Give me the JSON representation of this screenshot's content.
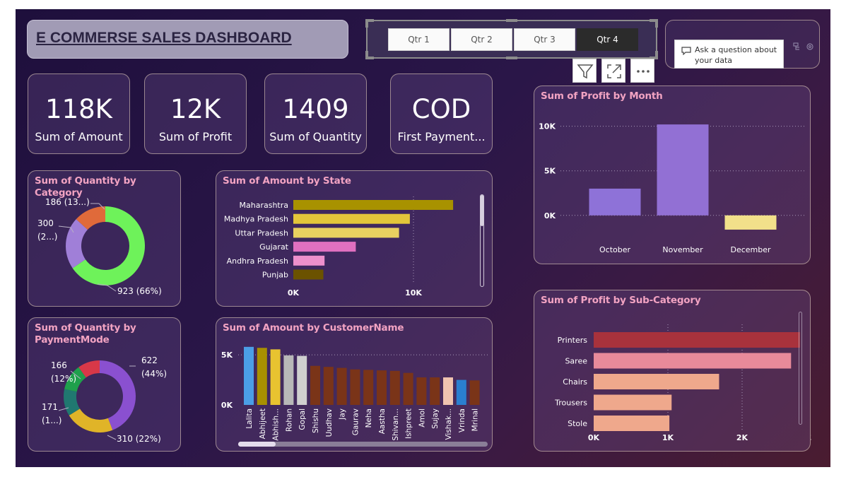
{
  "title": "E COMMERSE SALES DASHBOARD",
  "quarters": [
    {
      "label": "Qtr 1",
      "selected": false
    },
    {
      "label": "Qtr 2",
      "selected": false
    },
    {
      "label": "Qtr 3",
      "selected": false
    },
    {
      "label": "Qtr 4",
      "selected": true
    }
  ],
  "qa": {
    "line1": "Ask a question about",
    "line2": "your data"
  },
  "toolbar": {
    "filter_icon": "filter-icon",
    "focus_icon": "focus-mode-icon",
    "more_icon": "more-options-icon"
  },
  "kpis": [
    {
      "value": "118K",
      "label": "Sum of Amount"
    },
    {
      "value": "12K",
      "label": "Sum of Profit"
    },
    {
      "value": "1409",
      "label": "Sum of Quantity"
    },
    {
      "value": "COD",
      "label": "First Payment..."
    }
  ],
  "panels": {
    "category": "Sum of Quantity by Category",
    "payment": "Sum of Quantity by PaymentMode",
    "state": "Sum of Amount by State",
    "customer": "Sum of Amount by CustomerName",
    "month": "Sum of Profit by Month",
    "subcategory": "Sum of Profit by Sub-Category"
  },
  "chart_data": [
    {
      "id": "category",
      "type": "pie",
      "slices": [
        {
          "value": 923,
          "label": "923 (66%)",
          "color": "#6ef25a"
        },
        {
          "value": 300,
          "label": "300 (2...)",
          "color": "#a07fd8"
        },
        {
          "value": 186,
          "label": "186 (13...)",
          "color": "#e06a3a"
        }
      ]
    },
    {
      "id": "payment",
      "type": "pie",
      "slices": [
        {
          "value": 622,
          "label": "622 (44%)",
          "color": "#8a50d0"
        },
        {
          "value": 310,
          "label": "310 (22%)",
          "color": "#e0b428"
        },
        {
          "value": 171,
          "label": "171 (1...)",
          "color": "#207870"
        },
        {
          "value": 166,
          "label": "166 (12%)",
          "color": "#1fa04c"
        },
        {
          "value": 140,
          "label": "",
          "color": "#d83848"
        }
      ]
    },
    {
      "id": "state",
      "type": "bar",
      "categories": [
        "Maharashtra",
        "Madhya Pradesh",
        "Uttar Pradesh",
        "Gujarat",
        "Andhra Pradesh",
        "Punjab"
      ],
      "values": [
        13300,
        9700,
        8800,
        5200,
        2600,
        2500
      ],
      "colors": [
        "#a89200",
        "#e3c63a",
        "#e9d060",
        "#e070c0",
        "#ee90cc",
        "#6b5200"
      ],
      "xticks": [
        {
          "v": 0,
          "t": "0K"
        },
        {
          "v": 10000,
          "t": "10K"
        }
      ],
      "xlim": [
        0,
        15000
      ]
    },
    {
      "id": "customer",
      "type": "bar",
      "categories": [
        "Lalita",
        "Abhijeet",
        "Abhish...",
        "Rohan",
        "Gopal",
        "Shishu",
        "Uudhav",
        "Jay",
        "Gaurav",
        "Neha",
        "Aastha",
        "Shivan...",
        "Ishpreet",
        "Amol",
        "Sujay",
        "Vishak...",
        "Vrinda",
        "Mrinal"
      ],
      "values": [
        5800,
        5700,
        5550,
        4950,
        4900,
        3900,
        3800,
        3700,
        3550,
        3500,
        3450,
        3400,
        3200,
        2750,
        2750,
        2750,
        2500,
        2450
      ],
      "colors": [
        "#4b9ee6",
        "#a89000",
        "#e8c330",
        "#b8b8b8",
        "#cfcfcf",
        "#7a3418",
        "#7a3418",
        "#7a3418",
        "#7a3418",
        "#7a3418",
        "#7a3418",
        "#7a3418",
        "#7a3418",
        "#7a3418",
        "#7a3418",
        "#f0c4b0",
        "#2a7fd0",
        "#7a3418"
      ],
      "yticks": [
        {
          "v": 0,
          "t": "0K"
        },
        {
          "v": 5000,
          "t": "5K"
        }
      ],
      "ylim": [
        0,
        6000
      ]
    },
    {
      "id": "month",
      "type": "bar",
      "categories": [
        "October",
        "November",
        "December"
      ],
      "values": [
        3000,
        10200,
        -1600
      ],
      "colors": [
        "#8e72d8",
        "#9270d4",
        "#f2e08a"
      ],
      "yticks": [
        {
          "v": 0,
          "t": "0K"
        },
        {
          "v": 5000,
          "t": "5K"
        },
        {
          "v": 10000,
          "t": "10K"
        }
      ],
      "ylim": [
        -2000,
        11000
      ]
    },
    {
      "id": "subcategory",
      "type": "bar",
      "categories": [
        "Printers",
        "Saree",
        "Chairs",
        "Trousers",
        "Stole"
      ],
      "values": [
        2780,
        2660,
        1690,
        1050,
        1020
      ],
      "colors": [
        "#a8323c",
        "#e88a9a",
        "#efa88c",
        "#efa88c",
        "#efa88c"
      ],
      "xticks": [
        {
          "v": 0,
          "t": "0K"
        },
        {
          "v": 1000,
          "t": "1K"
        },
        {
          "v": 2000,
          "t": "2K"
        },
        {
          "v": 3000,
          "t": "3K"
        }
      ],
      "xlim": [
        0,
        3000
      ]
    }
  ]
}
